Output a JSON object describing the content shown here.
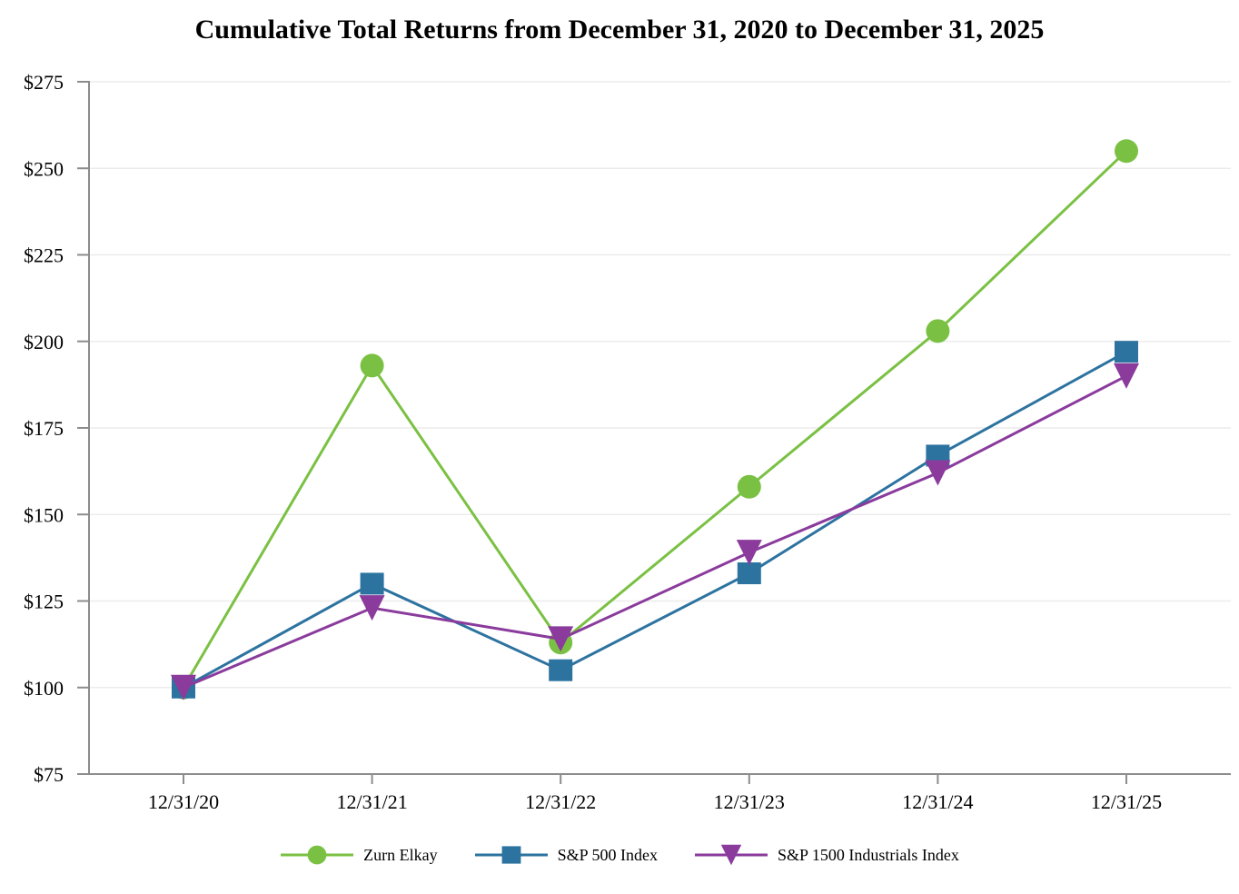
{
  "title": "Cumulative Total Returns from December 31, 2020 to December 31, 2025",
  "chart_data": {
    "type": "line",
    "title": "Cumulative Total Returns from December 31, 2020 to December 31, 2025",
    "categories": [
      "12/31/20",
      "12/31/21",
      "12/31/22",
      "12/31/23",
      "12/31/24",
      "12/31/25"
    ],
    "series": [
      {
        "name": "Zurn Elkay",
        "marker": "circle",
        "color": "#7AC143",
        "values": [
          100,
          193,
          113,
          158,
          203,
          255
        ]
      },
      {
        "name": "S&P 500 Index",
        "marker": "square",
        "color": "#2D73A0",
        "values": [
          100,
          130,
          105,
          133,
          167,
          197
        ]
      },
      {
        "name": "S&P 1500 Industrials Index",
        "marker": "triangle-down",
        "color": "#8A3B9C",
        "values": [
          100,
          123,
          114,
          139,
          162,
          190
        ]
      }
    ],
    "xlabel": "",
    "ylabel": "",
    "ylim": [
      75,
      275
    ],
    "y_tick_step": 25,
    "y_tick_labels": [
      "$75",
      "$100",
      "$125",
      "$150",
      "$175",
      "$200",
      "$225",
      "$250",
      "$275"
    ],
    "grid": true,
    "legend_position": "bottom"
  },
  "colors": {
    "axis": "#8C8C8C",
    "grid": "#ECECEC",
    "text": "#000000",
    "background": "#FFFFFF"
  }
}
